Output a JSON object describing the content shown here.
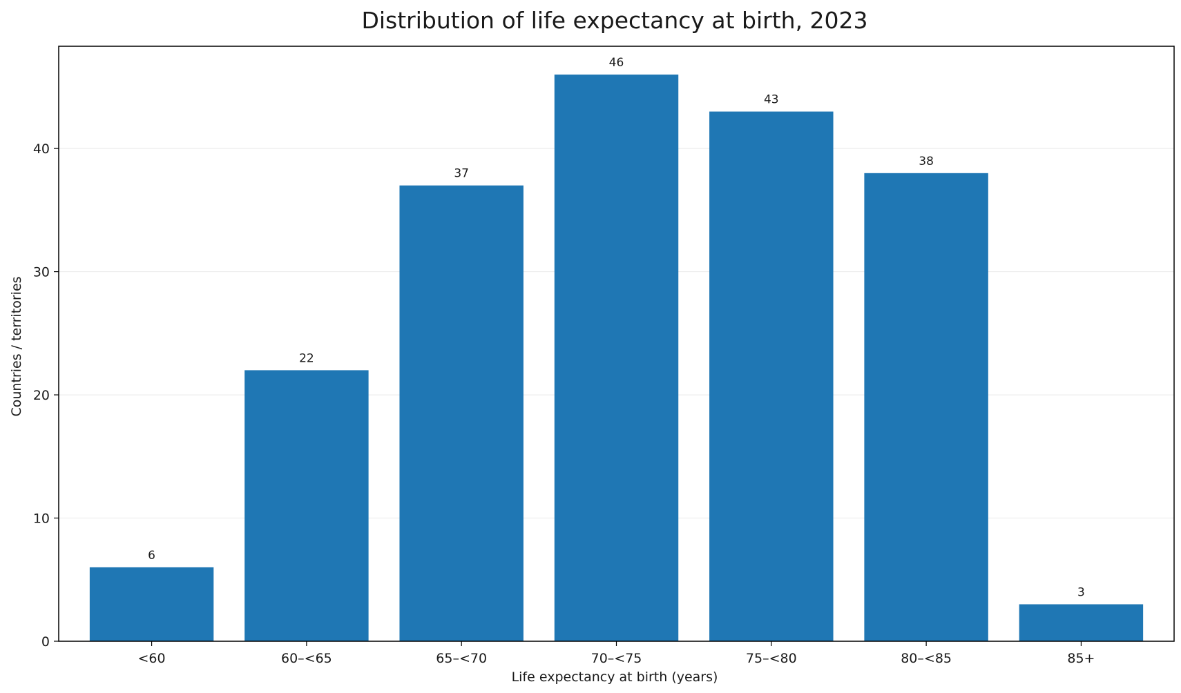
{
  "chart_data": {
    "type": "bar",
    "title": "Distribution of life expectancy at birth, 2023",
    "xlabel": "Life expectancy at birth (years)",
    "ylabel": "Countries / territories",
    "categories": [
      "<60",
      "60–<65",
      "65–<70",
      "70–<75",
      "75–<80",
      "80–<85",
      "85+"
    ],
    "values": [
      6,
      22,
      37,
      46,
      43,
      38,
      3
    ],
    "ylim": [
      0,
      48.3
    ],
    "yticks": [
      0,
      10,
      20,
      30,
      40
    ],
    "grid": true,
    "bar_color": "#1f77b4",
    "data_labels": true
  }
}
